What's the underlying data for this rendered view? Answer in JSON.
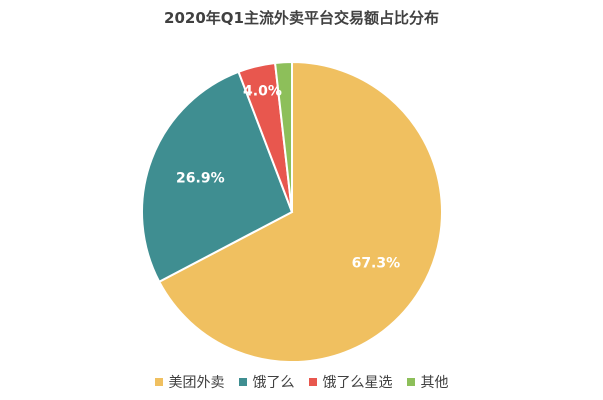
{
  "chart_data": {
    "type": "pie",
    "title": "2020年Q1主流外卖平台交易额占比分布",
    "categories": [
      "美团外卖",
      "饿了么",
      "饿了么星选",
      "其他"
    ],
    "values": [
      67.3,
      26.9,
      4.0,
      1.8
    ],
    "labels": [
      "67.3%",
      "26.9%",
      "4.0%",
      ""
    ],
    "colors": [
      "#F0C060",
      "#3F8E91",
      "#E8574E",
      "#8DBF5A"
    ],
    "legend_position": "bottom"
  }
}
